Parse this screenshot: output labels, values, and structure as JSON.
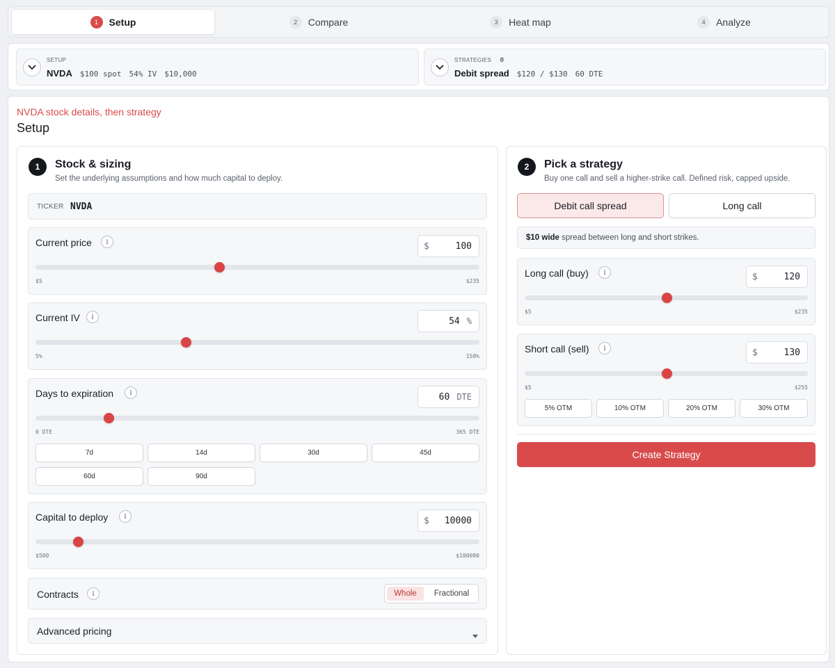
{
  "stepper": [
    {
      "num": "1",
      "label": "Setup",
      "active": true
    },
    {
      "num": "2",
      "label": "Compare",
      "active": false
    },
    {
      "num": "3",
      "label": "Heat map",
      "active": false
    },
    {
      "num": "4",
      "label": "Analyze",
      "active": false
    }
  ],
  "summary": {
    "setup": {
      "label": "SETUP",
      "ticker": "NVDA",
      "spot": "$100 spot",
      "iv": "54% IV",
      "capital": "$10,000"
    },
    "strategies": {
      "label": "STRATEGIES",
      "count": "0",
      "name": "Debit spread",
      "strikes": "$120 / $130",
      "dte": "60 DTE"
    }
  },
  "page": {
    "subtitle": "NVDA stock details, then strategy",
    "title": "Setup"
  },
  "stock": {
    "num": "1",
    "title": "Stock & sizing",
    "desc": "Set the underlying assumptions and how much capital to deploy.",
    "ticker_label": "TICKER",
    "ticker_value": "NVDA",
    "price": {
      "label": "Current price",
      "info": "i",
      "prefix": "$",
      "value": "100",
      "min_label": "$5",
      "max_label": "$235",
      "min": 5,
      "max": 235,
      "current": 100
    },
    "iv": {
      "label": "Current IV",
      "info": "i",
      "value": "54",
      "suffix": "%",
      "min_label": "5%",
      "max_label": "150%",
      "min": 5,
      "max": 150,
      "current": 54
    },
    "dte": {
      "label": "Days to expiration",
      "info": "i",
      "value": "60",
      "suffix": "DTE",
      "min_label": "0 DTE",
      "max_label": "365 DTE",
      "min": 0,
      "max": 365,
      "current": 60,
      "presets": [
        "7d",
        "14d",
        "30d",
        "45d",
        "60d",
        "90d"
      ]
    },
    "capital": {
      "label": "Capital to deploy",
      "info": "i",
      "prefix": "$",
      "value": "10000",
      "min_label": "$500",
      "max_label": "$100000",
      "min": 500,
      "max": 100000,
      "current": 10000
    },
    "contracts": {
      "label": "Contracts",
      "info": "i",
      "options": [
        "Whole",
        "Fractional"
      ],
      "selected": "Whole"
    },
    "advanced": {
      "label": "Advanced pricing"
    }
  },
  "strategy": {
    "num": "2",
    "title": "Pick a strategy",
    "desc": "Buy one call and sell a higher-strike call. Defined risk, capped upside.",
    "options": [
      "Debit call spread",
      "Long call"
    ],
    "selected": "Debit call spread",
    "note_bold": "$10 wide",
    "note_rest": "spread between long and short strikes.",
    "long_call": {
      "label": "Long call (buy)",
      "info": "i",
      "prefix": "$",
      "value": "120",
      "min_label": "$5",
      "max_label": "$235",
      "min": 5,
      "max": 235,
      "current": 120
    },
    "short_call": {
      "label": "Short call (sell)",
      "info": "i",
      "prefix": "$",
      "value": "130",
      "min_label": "$5",
      "max_label": "$255",
      "min": 5,
      "max": 255,
      "current": 130,
      "presets": [
        "5% OTM",
        "10% OTM",
        "20% OTM",
        "30% OTM"
      ]
    },
    "create_label": "Create Strategy"
  },
  "colors": {
    "accent": "#d94b4b",
    "accent_light": "#fbe7e7",
    "dark": "#14171c"
  }
}
